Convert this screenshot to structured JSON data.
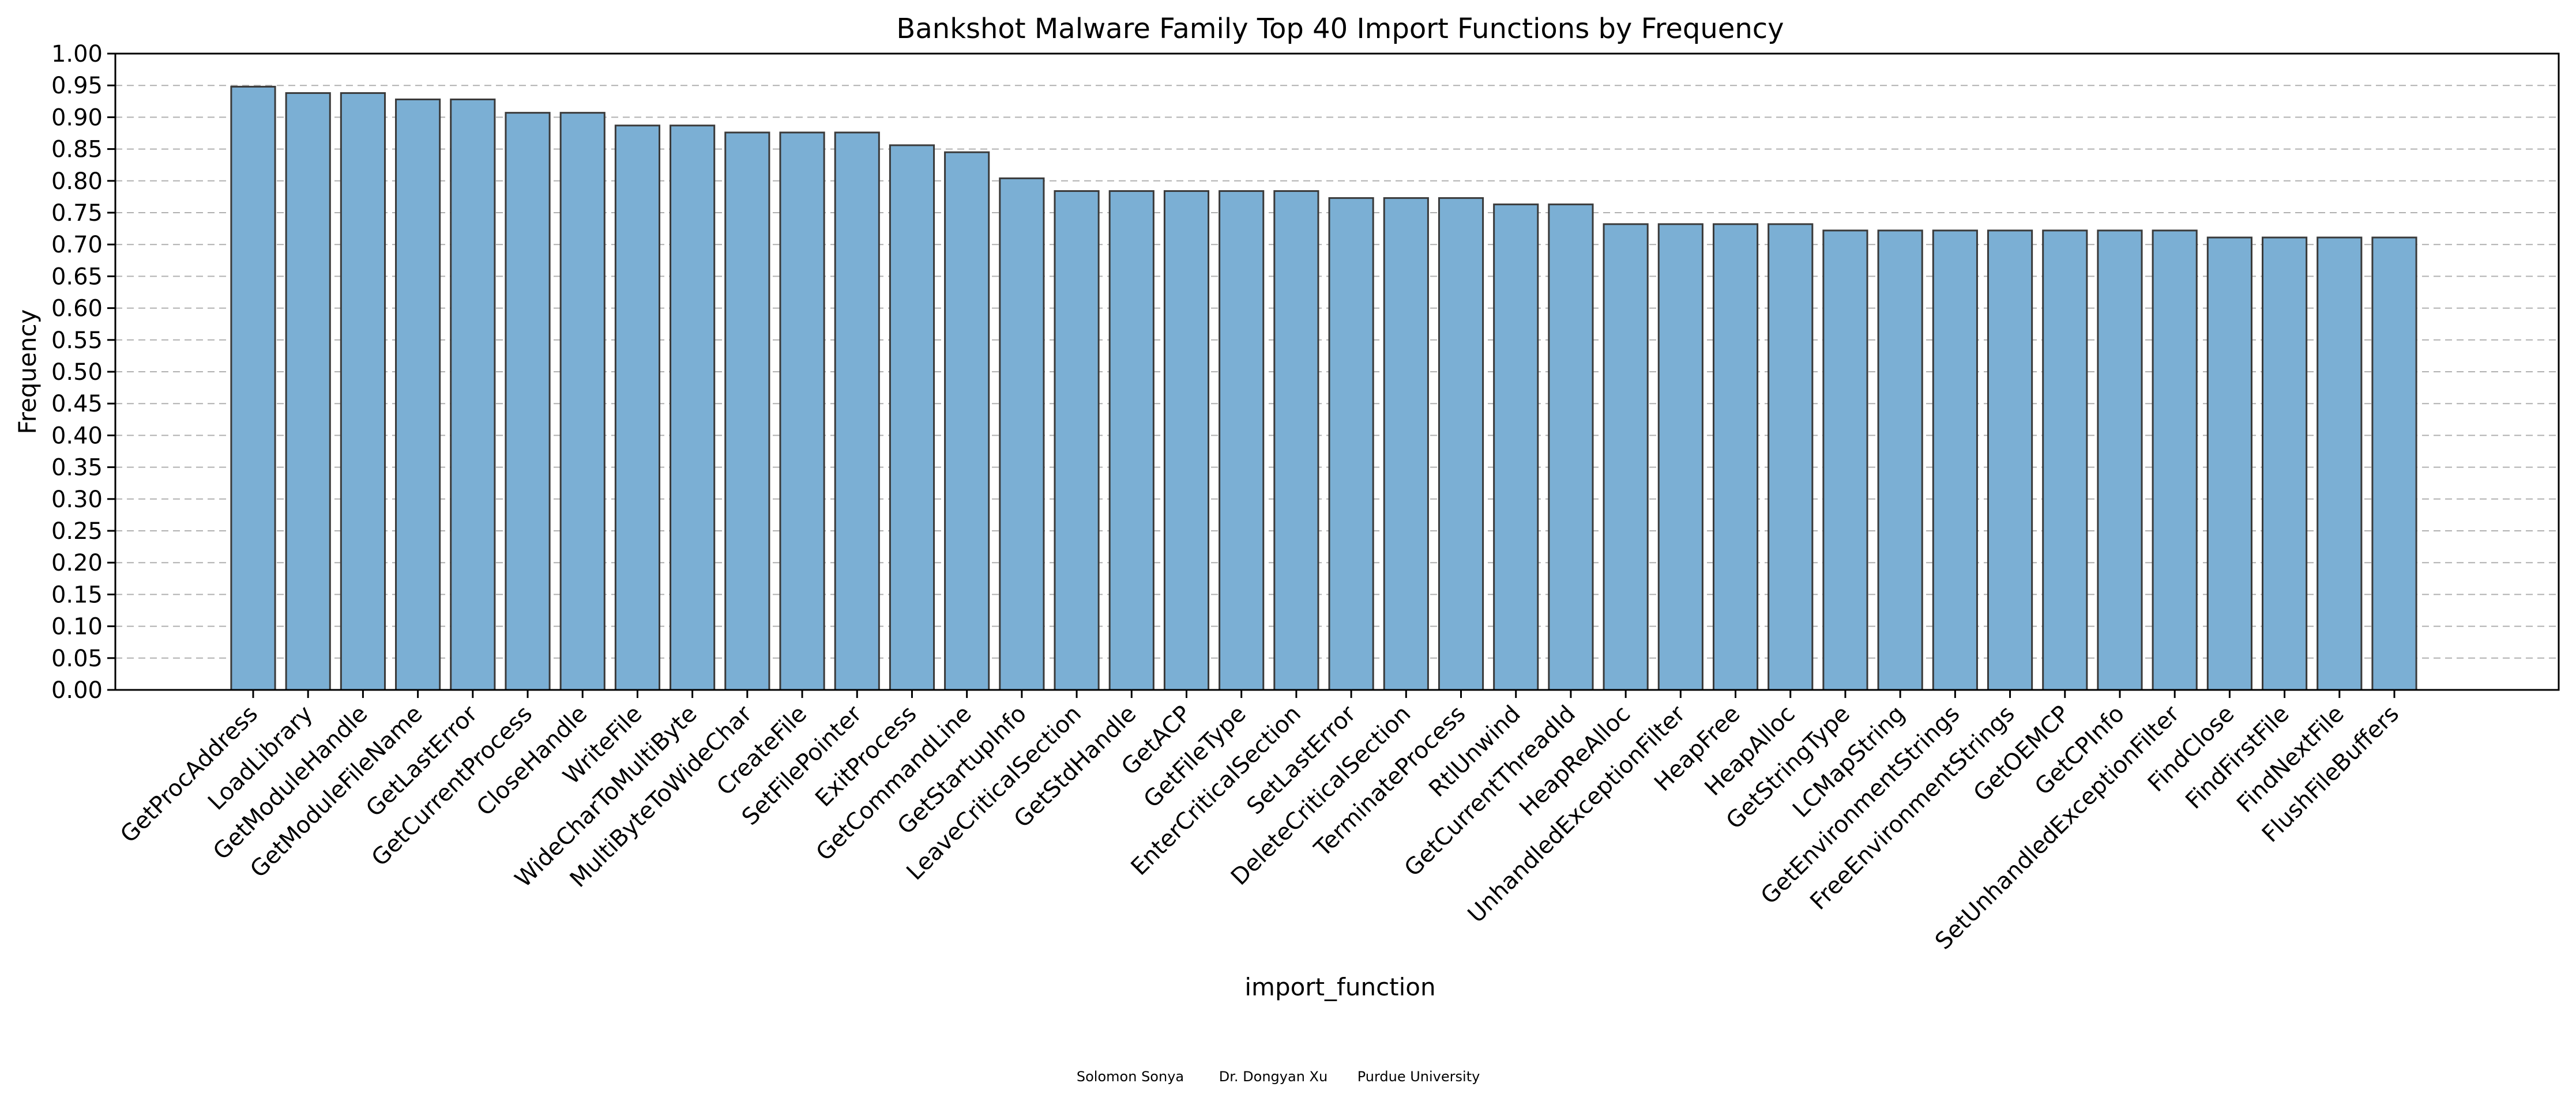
{
  "chart_data": {
    "type": "bar",
    "title": "Bankshot Malware Family Top 40 Import Functions by Frequency",
    "xlabel": "import_function",
    "ylabel": "Frequency",
    "ylim": [
      0,
      1
    ],
    "yticks": [
      "0.00",
      "0.05",
      "0.10",
      "0.15",
      "0.20",
      "0.25",
      "0.30",
      "0.35",
      "0.40",
      "0.45",
      "0.50",
      "0.55",
      "0.60",
      "0.65",
      "0.70",
      "0.75",
      "0.80",
      "0.85",
      "0.90",
      "0.95",
      "1.00"
    ],
    "grid": "y",
    "bar_color": "#7bafd4",
    "categories": [
      "GetProcAddress",
      "LoadLibrary",
      "GetModuleHandle",
      "GetModuleFileName",
      "GetLastError",
      "GetCurrentProcess",
      "CloseHandle",
      "WriteFile",
      "WideCharToMultiByte",
      "MultiByteToWideChar",
      "CreateFile",
      "SetFilePointer",
      "ExitProcess",
      "GetCommandLine",
      "GetStartupInfo",
      "LeaveCriticalSection",
      "GetStdHandle",
      "GetACP",
      "GetFileType",
      "EnterCriticalSection",
      "SetLastError",
      "DeleteCriticalSection",
      "TerminateProcess",
      "RtlUnwind",
      "GetCurrentThreadId",
      "HeapReAlloc",
      "UnhandledExceptionFilter",
      "HeapFree",
      "HeapAlloc",
      "GetStringType",
      "LCMapString",
      "GetEnvironmentStrings",
      "FreeEnvironmentStrings",
      "GetOEMCP",
      "GetCPInfo",
      "SetUnhandledExceptionFilter",
      "FindClose",
      "FindFirstFile",
      "FindNextFile",
      "FlushFileBuffers"
    ],
    "values": [
      0.948,
      0.938,
      0.938,
      0.928,
      0.928,
      0.907,
      0.907,
      0.887,
      0.887,
      0.876,
      0.876,
      0.876,
      0.856,
      0.845,
      0.804,
      0.784,
      0.784,
      0.784,
      0.784,
      0.784,
      0.773,
      0.773,
      0.773,
      0.763,
      0.763,
      0.732,
      0.732,
      0.732,
      0.732,
      0.722,
      0.722,
      0.722,
      0.722,
      0.722,
      0.722,
      0.722,
      0.711,
      0.711,
      0.711,
      0.711
    ]
  },
  "credit": {
    "author1": "Solomon Sonya",
    "author2": "Dr. Dongyan Xu",
    "org": "Purdue University"
  }
}
